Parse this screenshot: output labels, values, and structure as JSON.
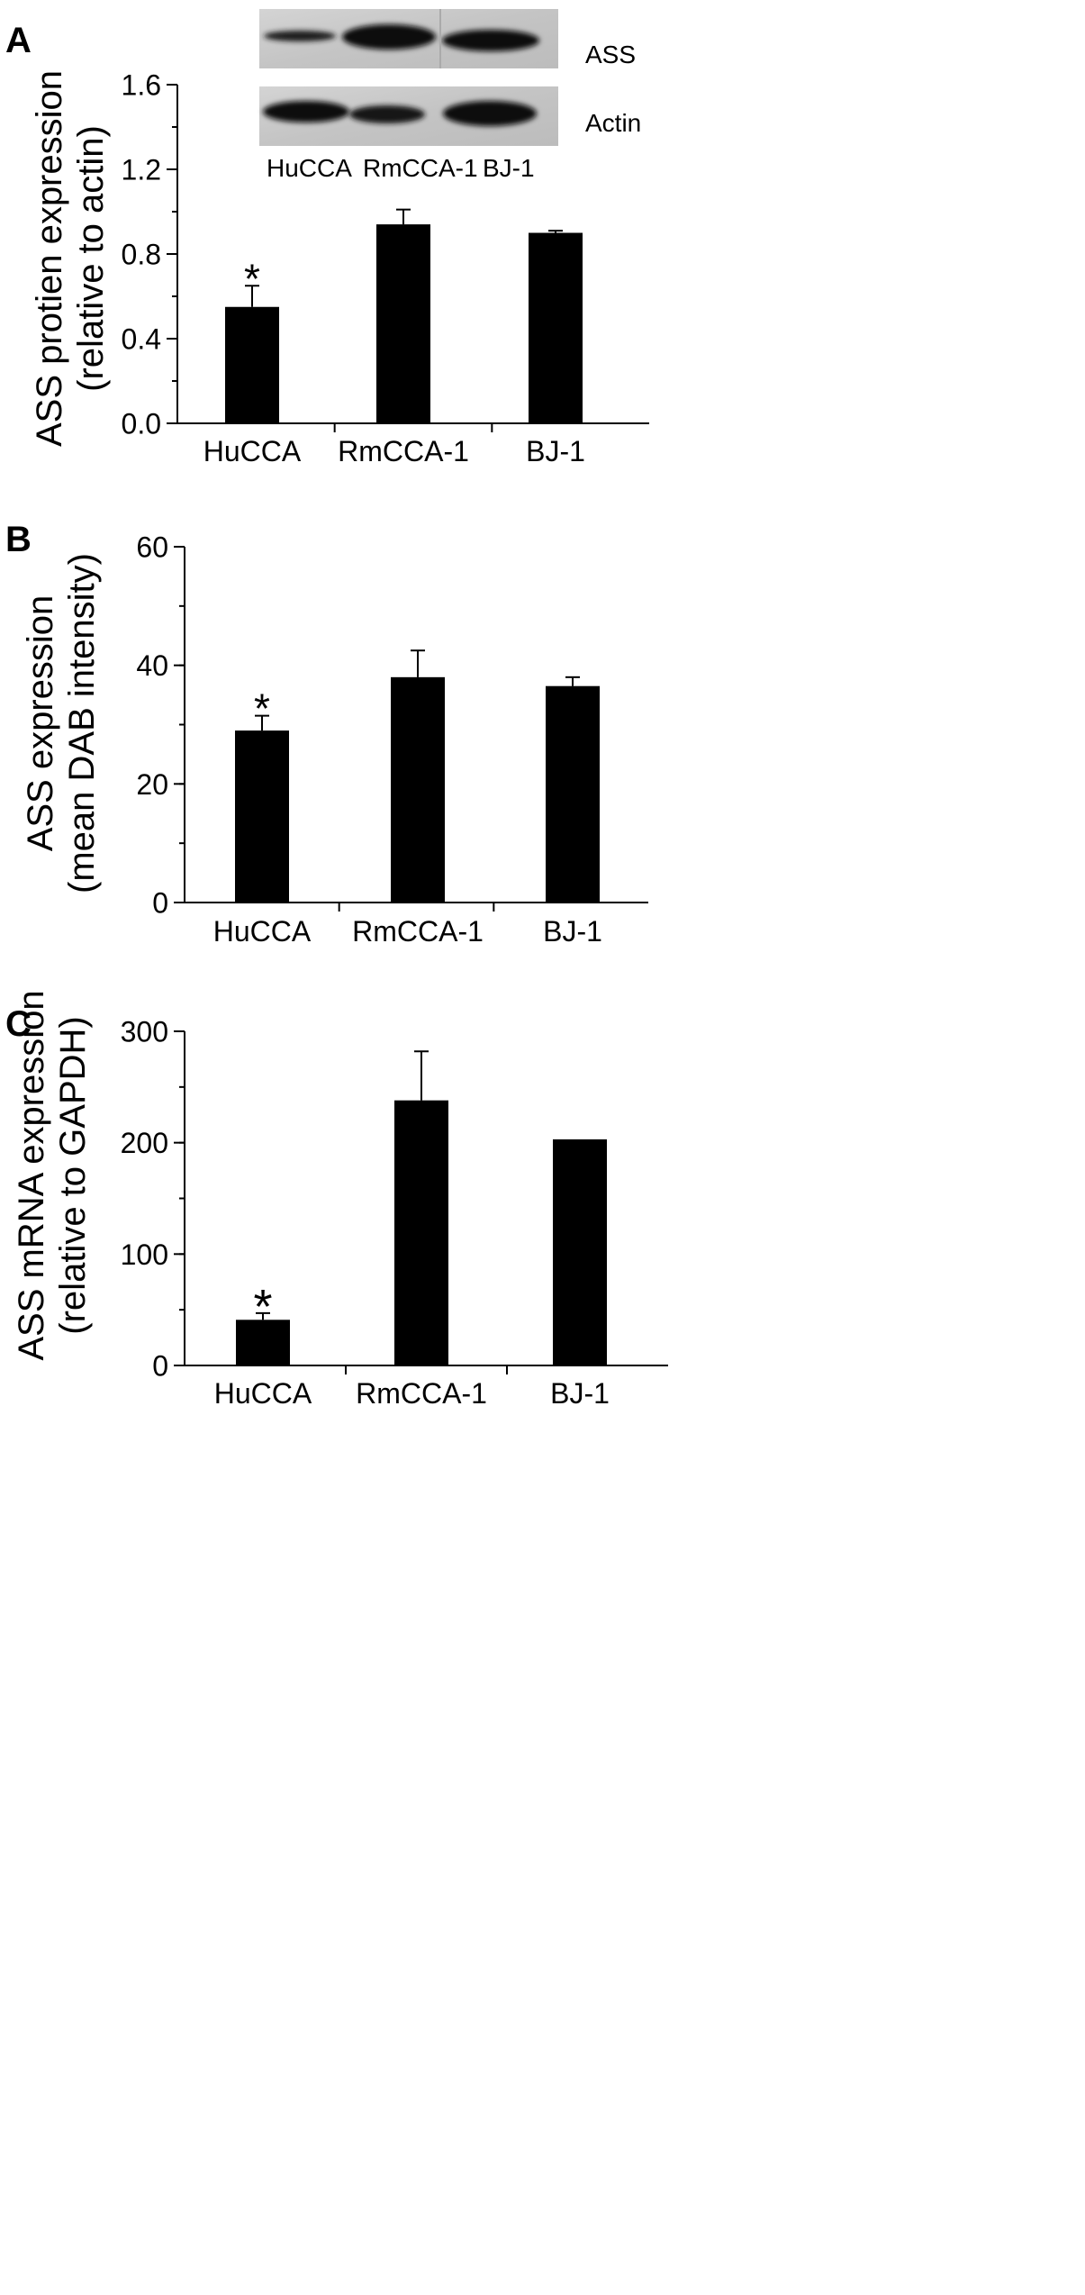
{
  "chart_data": [
    {
      "type": "bar",
      "panel_label": "A",
      "categories": [
        "HuCCA",
        "RmCCA-1",
        "BJ-1"
      ],
      "values": [
        0.55,
        0.94,
        0.9
      ],
      "errors": [
        0.1,
        0.07,
        0.01
      ],
      "significance": [
        "*",
        "",
        ""
      ],
      "ylabel_lines": [
        "ASS protien expression",
        "(relative to actin)"
      ],
      "ylim": [
        0,
        1.6
      ],
      "yticks": [
        "0.0",
        "0.4",
        "0.8",
        "1.2",
        "1.6"
      ],
      "ytick_values": [
        0,
        0.4,
        0.8,
        1.2,
        1.6
      ],
      "minor_step": 0.2,
      "blot": {
        "rows": [
          "ASS",
          "Actin"
        ],
        "lanes": [
          "HuCCA",
          "RmCCA-1",
          "BJ-1"
        ]
      }
    },
    {
      "type": "bar",
      "panel_label": "B",
      "categories": [
        "HuCCA",
        "RmCCA-1",
        "BJ-1"
      ],
      "values": [
        29,
        38,
        36.5
      ],
      "errors": [
        2.5,
        4.5,
        1.5
      ],
      "significance": [
        "*",
        "",
        ""
      ],
      "ylabel_lines": [
        "ASS expression",
        "(mean DAB intensity)"
      ],
      "ylim": [
        0,
        60
      ],
      "yticks": [
        "0",
        "20",
        "40",
        "60"
      ],
      "ytick_values": [
        0,
        20,
        40,
        60
      ],
      "minor_step": 10
    },
    {
      "type": "bar",
      "panel_label": "C",
      "categories": [
        "HuCCA",
        "RmCCA-1",
        "BJ-1"
      ],
      "values": [
        41,
        238,
        203
      ],
      "errors": [
        6,
        44,
        0
      ],
      "significance": [
        "*",
        "",
        ""
      ],
      "ylabel_lines": [
        "ASS mRNA expression",
        "(relative to GAPDH)"
      ],
      "ylim": [
        0,
        300
      ],
      "yticks": [
        "0",
        "100",
        "200",
        "300"
      ],
      "ytick_values": [
        0,
        100,
        200,
        300
      ],
      "minor_step": 50
    }
  ]
}
